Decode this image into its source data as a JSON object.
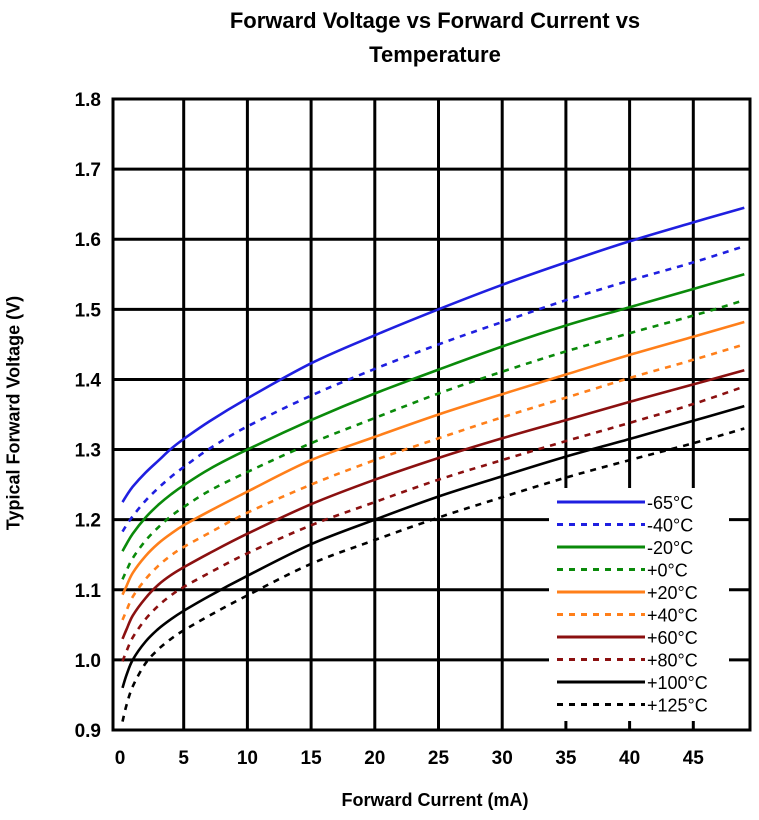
{
  "chart_data": {
    "type": "line",
    "title_lines": [
      "Forward Voltage vs Forward Current vs",
      "Temperature"
    ],
    "xlabel": "Forward Current (mA)",
    "ylabel": "Typical Forward Voltage (V)",
    "xlim": [
      0,
      50
    ],
    "ylim": [
      0.9,
      1.8
    ],
    "grid": true,
    "x_ticks": [
      0,
      5,
      10,
      15,
      20,
      25,
      30,
      35,
      40,
      45
    ],
    "x_tick_labels": [
      "0",
      "5",
      "10",
      "15",
      "20",
      "25",
      "30",
      "35",
      "40",
      "45"
    ],
    "y_ticks": [
      0.9,
      1.0,
      1.1,
      1.2,
      1.3,
      1.4,
      1.5,
      1.6,
      1.7,
      1.8
    ],
    "y_tick_labels": [
      "0.9",
      "1.0",
      "1.1",
      "1.2",
      "1.3",
      "1.4",
      "1.5",
      "1.6",
      "1.7",
      "1.8"
    ],
    "legend_position": "bottom-right",
    "x": [
      0.2,
      0.5,
      1,
      2,
      3,
      4,
      5,
      7,
      10,
      15,
      20,
      25,
      30,
      35,
      40,
      45,
      49
    ],
    "series": [
      {
        "name": "-65°C",
        "color": "#1f1fe0",
        "dashed": false,
        "values": [
          1.225,
          1.234,
          1.247,
          1.267,
          1.284,
          1.301,
          1.315,
          1.34,
          1.373,
          1.423,
          1.463,
          1.5,
          1.535,
          1.567,
          1.597,
          1.624,
          1.645
        ]
      },
      {
        "name": "-40°C",
        "color": "#1f1fe0",
        "dashed": true,
        "values": [
          1.183,
          1.192,
          1.205,
          1.227,
          1.245,
          1.261,
          1.275,
          1.301,
          1.333,
          1.377,
          1.415,
          1.45,
          1.482,
          1.513,
          1.541,
          1.567,
          1.59
        ]
      },
      {
        "name": "-20°C",
        "color": "#0a8a0a",
        "dashed": false,
        "values": [
          1.155,
          1.165,
          1.18,
          1.203,
          1.221,
          1.236,
          1.249,
          1.272,
          1.3,
          1.342,
          1.38,
          1.414,
          1.447,
          1.477,
          1.503,
          1.529,
          1.55
        ]
      },
      {
        "name": "+0°C",
        "color": "#0a8a0a",
        "dashed": true,
        "values": [
          1.115,
          1.127,
          1.145,
          1.17,
          1.189,
          1.205,
          1.218,
          1.241,
          1.268,
          1.309,
          1.345,
          1.38,
          1.411,
          1.44,
          1.466,
          1.491,
          1.513
        ]
      },
      {
        "name": "+20°C",
        "color": "#ff7f1a",
        "dashed": false,
        "values": [
          1.093,
          1.105,
          1.124,
          1.148,
          1.166,
          1.18,
          1.192,
          1.212,
          1.24,
          1.285,
          1.318,
          1.35,
          1.379,
          1.407,
          1.435,
          1.461,
          1.482
        ]
      },
      {
        "name": "+40°C",
        "color": "#ff7f1a",
        "dashed": true,
        "values": [
          1.057,
          1.07,
          1.09,
          1.115,
          1.134,
          1.149,
          1.161,
          1.181,
          1.21,
          1.25,
          1.285,
          1.316,
          1.346,
          1.374,
          1.402,
          1.428,
          1.45
        ]
      },
      {
        "name": "+60°C",
        "color": "#8b1010",
        "dashed": false,
        "values": [
          1.03,
          1.043,
          1.063,
          1.088,
          1.107,
          1.121,
          1.132,
          1.152,
          1.18,
          1.222,
          1.257,
          1.288,
          1.316,
          1.342,
          1.368,
          1.393,
          1.413
        ]
      },
      {
        "name": "+80°C",
        "color": "#8b1010",
        "dashed": true,
        "values": [
          0.998,
          1.012,
          1.032,
          1.058,
          1.077,
          1.092,
          1.104,
          1.124,
          1.152,
          1.192,
          1.225,
          1.257,
          1.285,
          1.312,
          1.338,
          1.365,
          1.39
        ]
      },
      {
        "name": "+100°C",
        "color": "#000000",
        "dashed": false,
        "values": [
          0.96,
          0.978,
          1.0,
          1.026,
          1.044,
          1.058,
          1.07,
          1.091,
          1.12,
          1.165,
          1.2,
          1.233,
          1.262,
          1.29,
          1.315,
          1.341,
          1.362
        ]
      },
      {
        "name": "+125°C",
        "color": "#000000",
        "dashed": true,
        "values": [
          0.912,
          0.935,
          0.962,
          0.995,
          1.015,
          1.03,
          1.042,
          1.063,
          1.092,
          1.137,
          1.171,
          1.203,
          1.232,
          1.26,
          1.285,
          1.309,
          1.33
        ]
      }
    ]
  }
}
